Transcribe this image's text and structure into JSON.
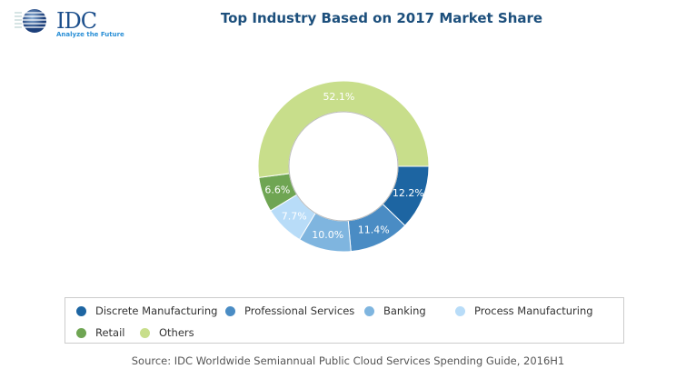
{
  "logo": {
    "name": "IDC",
    "tagline": "Analyze the Future"
  },
  "chart_data": {
    "type": "pie",
    "subtype": "donut",
    "title": "Top Industry Based on 2017 Market Share",
    "categories": [
      "Discrete Manufacturing",
      "Professional Services",
      "Banking",
      "Process Manufacturing",
      "Retail",
      "Others"
    ],
    "values": [
      12.2,
      11.4,
      10.0,
      7.7,
      6.6,
      52.1
    ],
    "labels": [
      "12.2%",
      "11.4%",
      "10.0%",
      "7.7%",
      "6.6%",
      "52.1%"
    ],
    "colors": [
      "#1d65a2",
      "#4a8cc4",
      "#7fb5df",
      "#b8dcf8",
      "#6fa553",
      "#c8de8b"
    ],
    "legend_position": "bottom",
    "source": "Source: IDC Worldwide Semiannual Public Cloud Services Spending Guide, 2016H1"
  }
}
